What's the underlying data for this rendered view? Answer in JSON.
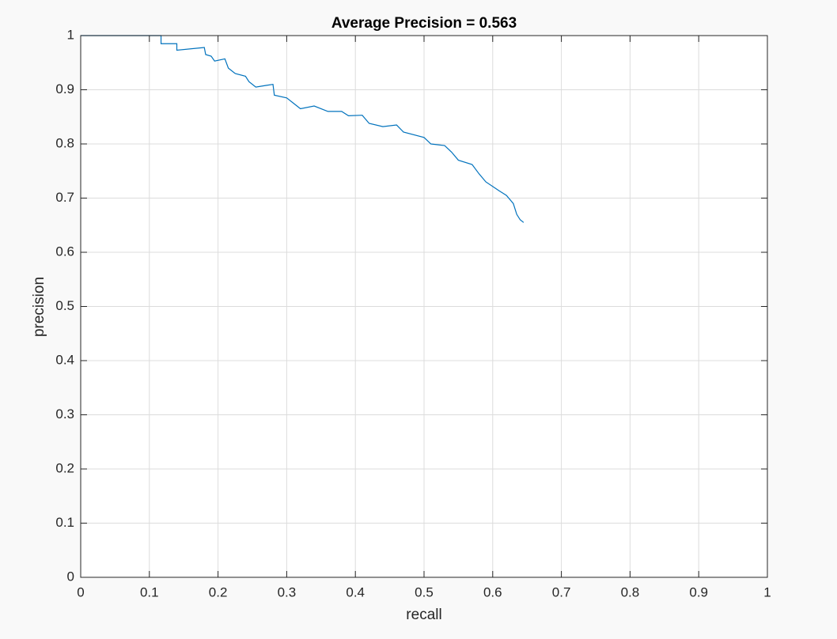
{
  "chart_data": {
    "type": "line",
    "title": "Average Precision = 0.563",
    "x_label": "recall",
    "y_label": "precision",
    "x": [
      0,
      0.117,
      0.117,
      0.14,
      0.14,
      0.18,
      0.182,
      0.19,
      0.195,
      0.21,
      0.215,
      0.225,
      0.24,
      0.245,
      0.255,
      0.27,
      0.28,
      0.282,
      0.3,
      0.31,
      0.32,
      0.34,
      0.36,
      0.38,
      0.39,
      0.41,
      0.42,
      0.44,
      0.46,
      0.47,
      0.5,
      0.51,
      0.53,
      0.54,
      0.55,
      0.57,
      0.58,
      0.59,
      0.61,
      0.62,
      0.63,
      0.635,
      0.64,
      0.645
    ],
    "values": [
      1,
      1,
      0.985,
      0.985,
      0.973,
      0.978,
      0.965,
      0.962,
      0.953,
      0.957,
      0.94,
      0.93,
      0.925,
      0.915,
      0.905,
      0.908,
      0.91,
      0.89,
      0.885,
      0.875,
      0.865,
      0.87,
      0.86,
      0.86,
      0.852,
      0.853,
      0.838,
      0.832,
      0.835,
      0.822,
      0.812,
      0.8,
      0.797,
      0.785,
      0.77,
      0.762,
      0.745,
      0.73,
      0.713,
      0.705,
      0.69,
      0.67,
      0.66,
      0.655
    ],
    "color": "#0072bd",
    "xlim": [
      0,
      1
    ],
    "ylim": [
      0,
      1
    ],
    "xticks": [
      0,
      0.1,
      0.2,
      0.3,
      0.4,
      0.5,
      0.6,
      0.7,
      0.8,
      0.9,
      1
    ],
    "yticks": [
      0,
      0.1,
      0.2,
      0.3,
      0.4,
      0.5,
      0.6,
      0.7,
      0.8,
      0.9,
      1
    ],
    "grid": true
  }
}
